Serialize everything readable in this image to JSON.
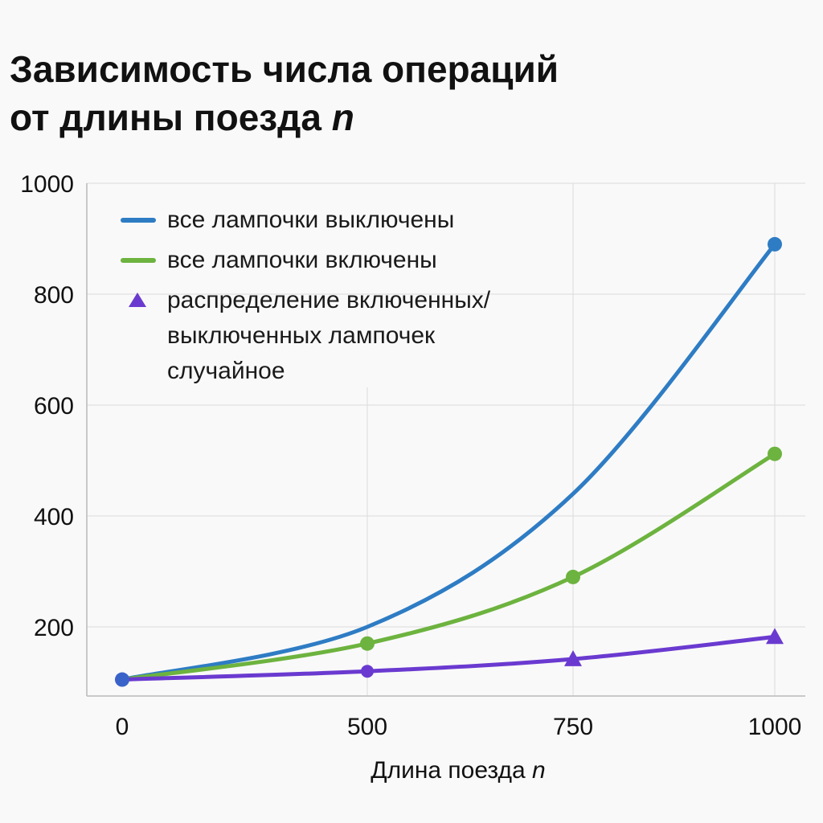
{
  "title": {
    "line1": "Зависимость числа операций",
    "line2_text": "от длины поезда",
    "line2_var": "n"
  },
  "chart_data": {
    "type": "line",
    "x": [
      0,
      500,
      750,
      1000
    ],
    "xticks": [
      "0",
      "500",
      "750",
      "1000"
    ],
    "xlabel": "Длина поезда",
    "xlabel_var": "n",
    "ylabel": "",
    "yticks": [
      200,
      400,
      600,
      800,
      1000
    ],
    "ylim": [
      0,
      1000
    ],
    "grid": true,
    "legend_position": "top-left",
    "series": [
      {
        "name": "все лампочки выключены",
        "color": "#2e7cc4",
        "marker": "circle",
        "values": [
          105,
          200,
          440,
          890
        ]
      },
      {
        "name": "все лампочки включены",
        "color": "#6db33f",
        "marker": "circle",
        "values": [
          105,
          170,
          290,
          512
        ]
      },
      {
        "name": "распределение включенных/\nвыключенных лампочек\nслучайное",
        "color": "#6a3ad0",
        "marker": "triangle",
        "values": [
          105,
          120,
          142,
          182
        ]
      }
    ]
  }
}
